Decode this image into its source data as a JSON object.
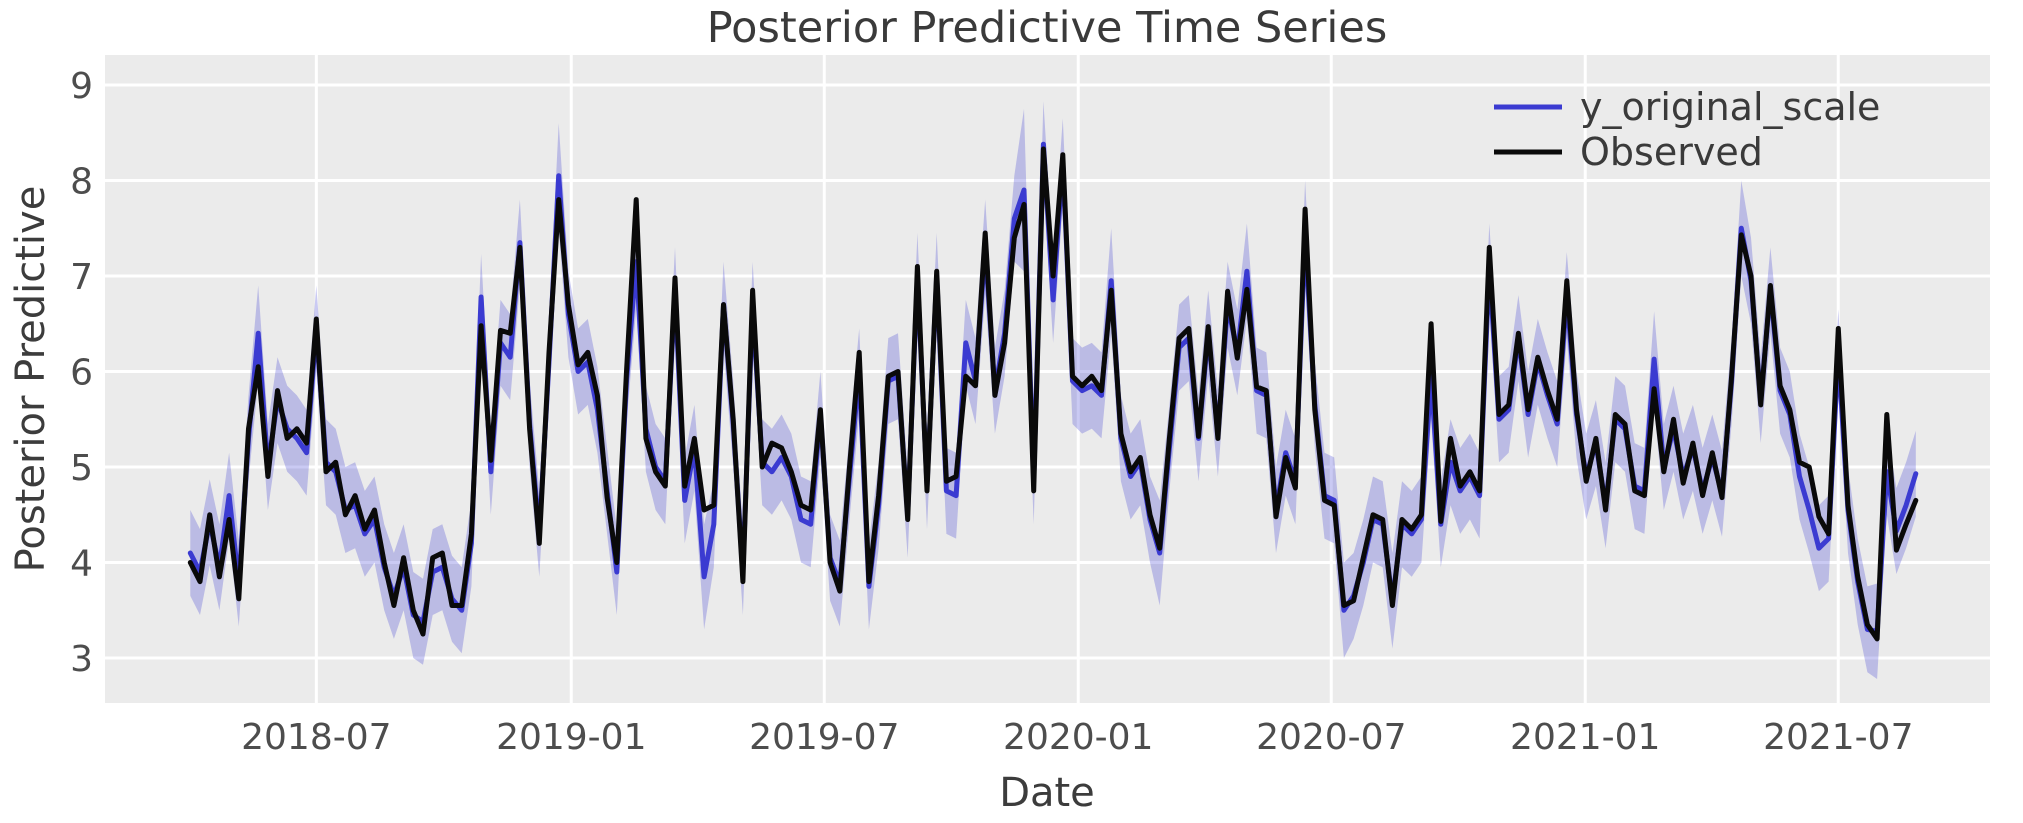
{
  "title": "Posterior Predictive Time Series",
  "legend": [
    {
      "label": "y_original_scale",
      "color": "#3b3bd1"
    },
    {
      "label": "Observed",
      "color": "#0a0a0a"
    }
  ],
  "style": {
    "figure_bg": "#ffffff",
    "plot_bg": "#ebebeb",
    "grid_color": "#ffffff",
    "band_fill": "rgba(60,60,210,0.27)",
    "blue_line": "#3b3bd1",
    "black_line": "#0a0a0a",
    "tick_color": "#4d4d4d"
  },
  "chart_data": {
    "type": "line",
    "title": "Posterior Predictive Time Series",
    "xlabel": "Date",
    "ylabel": "Posterior Predictive",
    "grid": true,
    "legend_position": "upper right",
    "x_start_date": "2018-04-01",
    "x_step": "1 week",
    "n_points": 179,
    "ylim": [
      2.53,
      9.31
    ],
    "y_ticks": [
      3,
      4,
      5,
      6,
      7,
      8,
      9
    ],
    "x_ticks": [
      {
        "label": "2018-07",
        "week": 13.0
      },
      {
        "label": "2019-01",
        "week": 39.3
      },
      {
        "label": "2019-07",
        "week": 65.4
      },
      {
        "label": "2020-01",
        "week": 91.6
      },
      {
        "label": "2020-07",
        "week": 117.7
      },
      {
        "label": "2021-01",
        "week": 143.9
      },
      {
        "label": "2021-07",
        "week": 170.0
      }
    ],
    "series": [
      {
        "name": "y_original_scale",
        "color": "#3b3bd1",
        "values": [
          4.1,
          3.9,
          4.42,
          3.95,
          4.7,
          3.78,
          5.3,
          6.4,
          5.0,
          5.7,
          5.4,
          5.3,
          5.15,
          6.45,
          5.05,
          4.95,
          4.55,
          4.6,
          4.3,
          4.45,
          3.95,
          3.65,
          3.95,
          3.45,
          3.38,
          3.9,
          3.95,
          3.62,
          3.5,
          4.2,
          6.78,
          4.95,
          6.3,
          6.15,
          7.35,
          5.45,
          4.3,
          6.1,
          8.05,
          6.6,
          6.0,
          6.1,
          5.6,
          4.75,
          3.9,
          5.9,
          7.15,
          5.4,
          5.0,
          4.85,
          6.85,
          4.65,
          5.2,
          3.85,
          4.4,
          6.7,
          5.45,
          3.9,
          6.7,
          5.05,
          4.95,
          5.1,
          4.9,
          4.45,
          4.4,
          5.55,
          4.05,
          3.78,
          4.9,
          6.0,
          3.75,
          4.6,
          5.9,
          5.95,
          4.5,
          7.0,
          4.8,
          7.0,
          4.75,
          4.7,
          6.3,
          5.9,
          7.3,
          5.8,
          6.4,
          7.6,
          7.9,
          4.85,
          8.38,
          6.75,
          8.2,
          5.9,
          5.8,
          5.85,
          5.75,
          6.95,
          5.3,
          4.9,
          5.05,
          4.45,
          4.1,
          5.2,
          6.25,
          6.35,
          5.3,
          6.4,
          5.35,
          6.7,
          6.2,
          7.05,
          5.8,
          5.75,
          4.55,
          5.15,
          4.85,
          7.45,
          5.65,
          4.7,
          4.65,
          3.5,
          3.65,
          4.0,
          4.45,
          4.4,
          3.6,
          4.4,
          4.3,
          4.45,
          5.95,
          4.4,
          5.05,
          4.75,
          4.9,
          4.7,
          7.1,
          5.5,
          5.6,
          6.35,
          5.55,
          6.1,
          5.75,
          5.45,
          6.8,
          5.55,
          4.9,
          5.25,
          4.6,
          5.5,
          5.4,
          4.8,
          4.75,
          6.13,
          5.0,
          5.4,
          4.9,
          5.2,
          4.75,
          5.1,
          4.72,
          5.9,
          7.5,
          6.95,
          5.7,
          6.85,
          5.8,
          5.55,
          4.9,
          4.55,
          4.15,
          4.25,
          6.2,
          4.55,
          3.8,
          3.3,
          3.28,
          4.95,
          4.33,
          4.6,
          4.93
        ]
      },
      {
        "name": "Observed",
        "color": "#0a0a0a",
        "values": [
          4.0,
          3.8,
          4.5,
          3.85,
          4.45,
          3.62,
          5.4,
          6.05,
          4.9,
          5.8,
          5.3,
          5.4,
          5.25,
          6.55,
          4.95,
          5.05,
          4.5,
          4.7,
          4.35,
          4.55,
          4.0,
          3.55,
          4.05,
          3.5,
          3.25,
          4.05,
          4.1,
          3.55,
          3.55,
          4.3,
          6.48,
          5.07,
          6.43,
          6.4,
          7.3,
          5.4,
          4.2,
          6.2,
          7.8,
          6.7,
          6.07,
          6.2,
          5.75,
          4.68,
          4.0,
          6.0,
          7.8,
          5.3,
          4.95,
          4.8,
          6.98,
          4.8,
          5.3,
          4.55,
          4.6,
          6.7,
          5.5,
          3.8,
          6.85,
          5.0,
          5.25,
          5.2,
          4.95,
          4.6,
          4.55,
          5.6,
          4.0,
          3.7,
          5.0,
          6.2,
          3.8,
          4.7,
          5.95,
          6.0,
          4.45,
          7.1,
          4.75,
          7.05,
          4.85,
          4.9,
          5.95,
          5.85,
          7.45,
          5.75,
          6.3,
          7.4,
          7.75,
          4.75,
          8.33,
          7.0,
          8.27,
          5.95,
          5.85,
          5.95,
          5.8,
          6.85,
          5.35,
          4.95,
          5.1,
          4.5,
          4.15,
          5.3,
          6.35,
          6.45,
          5.32,
          6.47,
          5.3,
          6.84,
          6.14,
          6.86,
          5.84,
          5.8,
          4.48,
          5.1,
          4.78,
          7.7,
          5.6,
          4.65,
          4.6,
          3.55,
          3.6,
          4.05,
          4.5,
          4.45,
          3.55,
          4.45,
          4.35,
          4.5,
          6.5,
          4.43,
          5.3,
          4.8,
          4.95,
          4.75,
          7.3,
          5.55,
          5.65,
          6.4,
          5.6,
          6.15,
          5.8,
          5.5,
          6.95,
          5.6,
          4.85,
          5.3,
          4.55,
          5.55,
          5.45,
          4.75,
          4.7,
          5.82,
          4.95,
          5.5,
          4.83,
          5.25,
          4.7,
          5.15,
          4.68,
          5.95,
          7.43,
          7.0,
          5.65,
          6.9,
          5.85,
          5.6,
          5.05,
          5.0,
          4.48,
          4.3,
          6.45,
          4.6,
          3.85,
          3.35,
          3.2,
          5.55,
          4.13,
          4.4,
          4.65
        ]
      }
    ],
    "band": {
      "around": "y_original_scale",
      "fill": "rgba(60,60,210,0.27)",
      "halfwidth_default": 0.45,
      "halfwidth_overrides": {
        "7": 0.5,
        "38": 0.55,
        "46": 0.5,
        "53": 0.55,
        "82": 0.5,
        "86": 0.85,
        "95": 0.55,
        "100": 0.55,
        "109": 0.5,
        "115": 0.55,
        "119": 0.5,
        "124": 0.5,
        "151": 0.5,
        "160": 0.5,
        "174": 0.5
      }
    }
  }
}
